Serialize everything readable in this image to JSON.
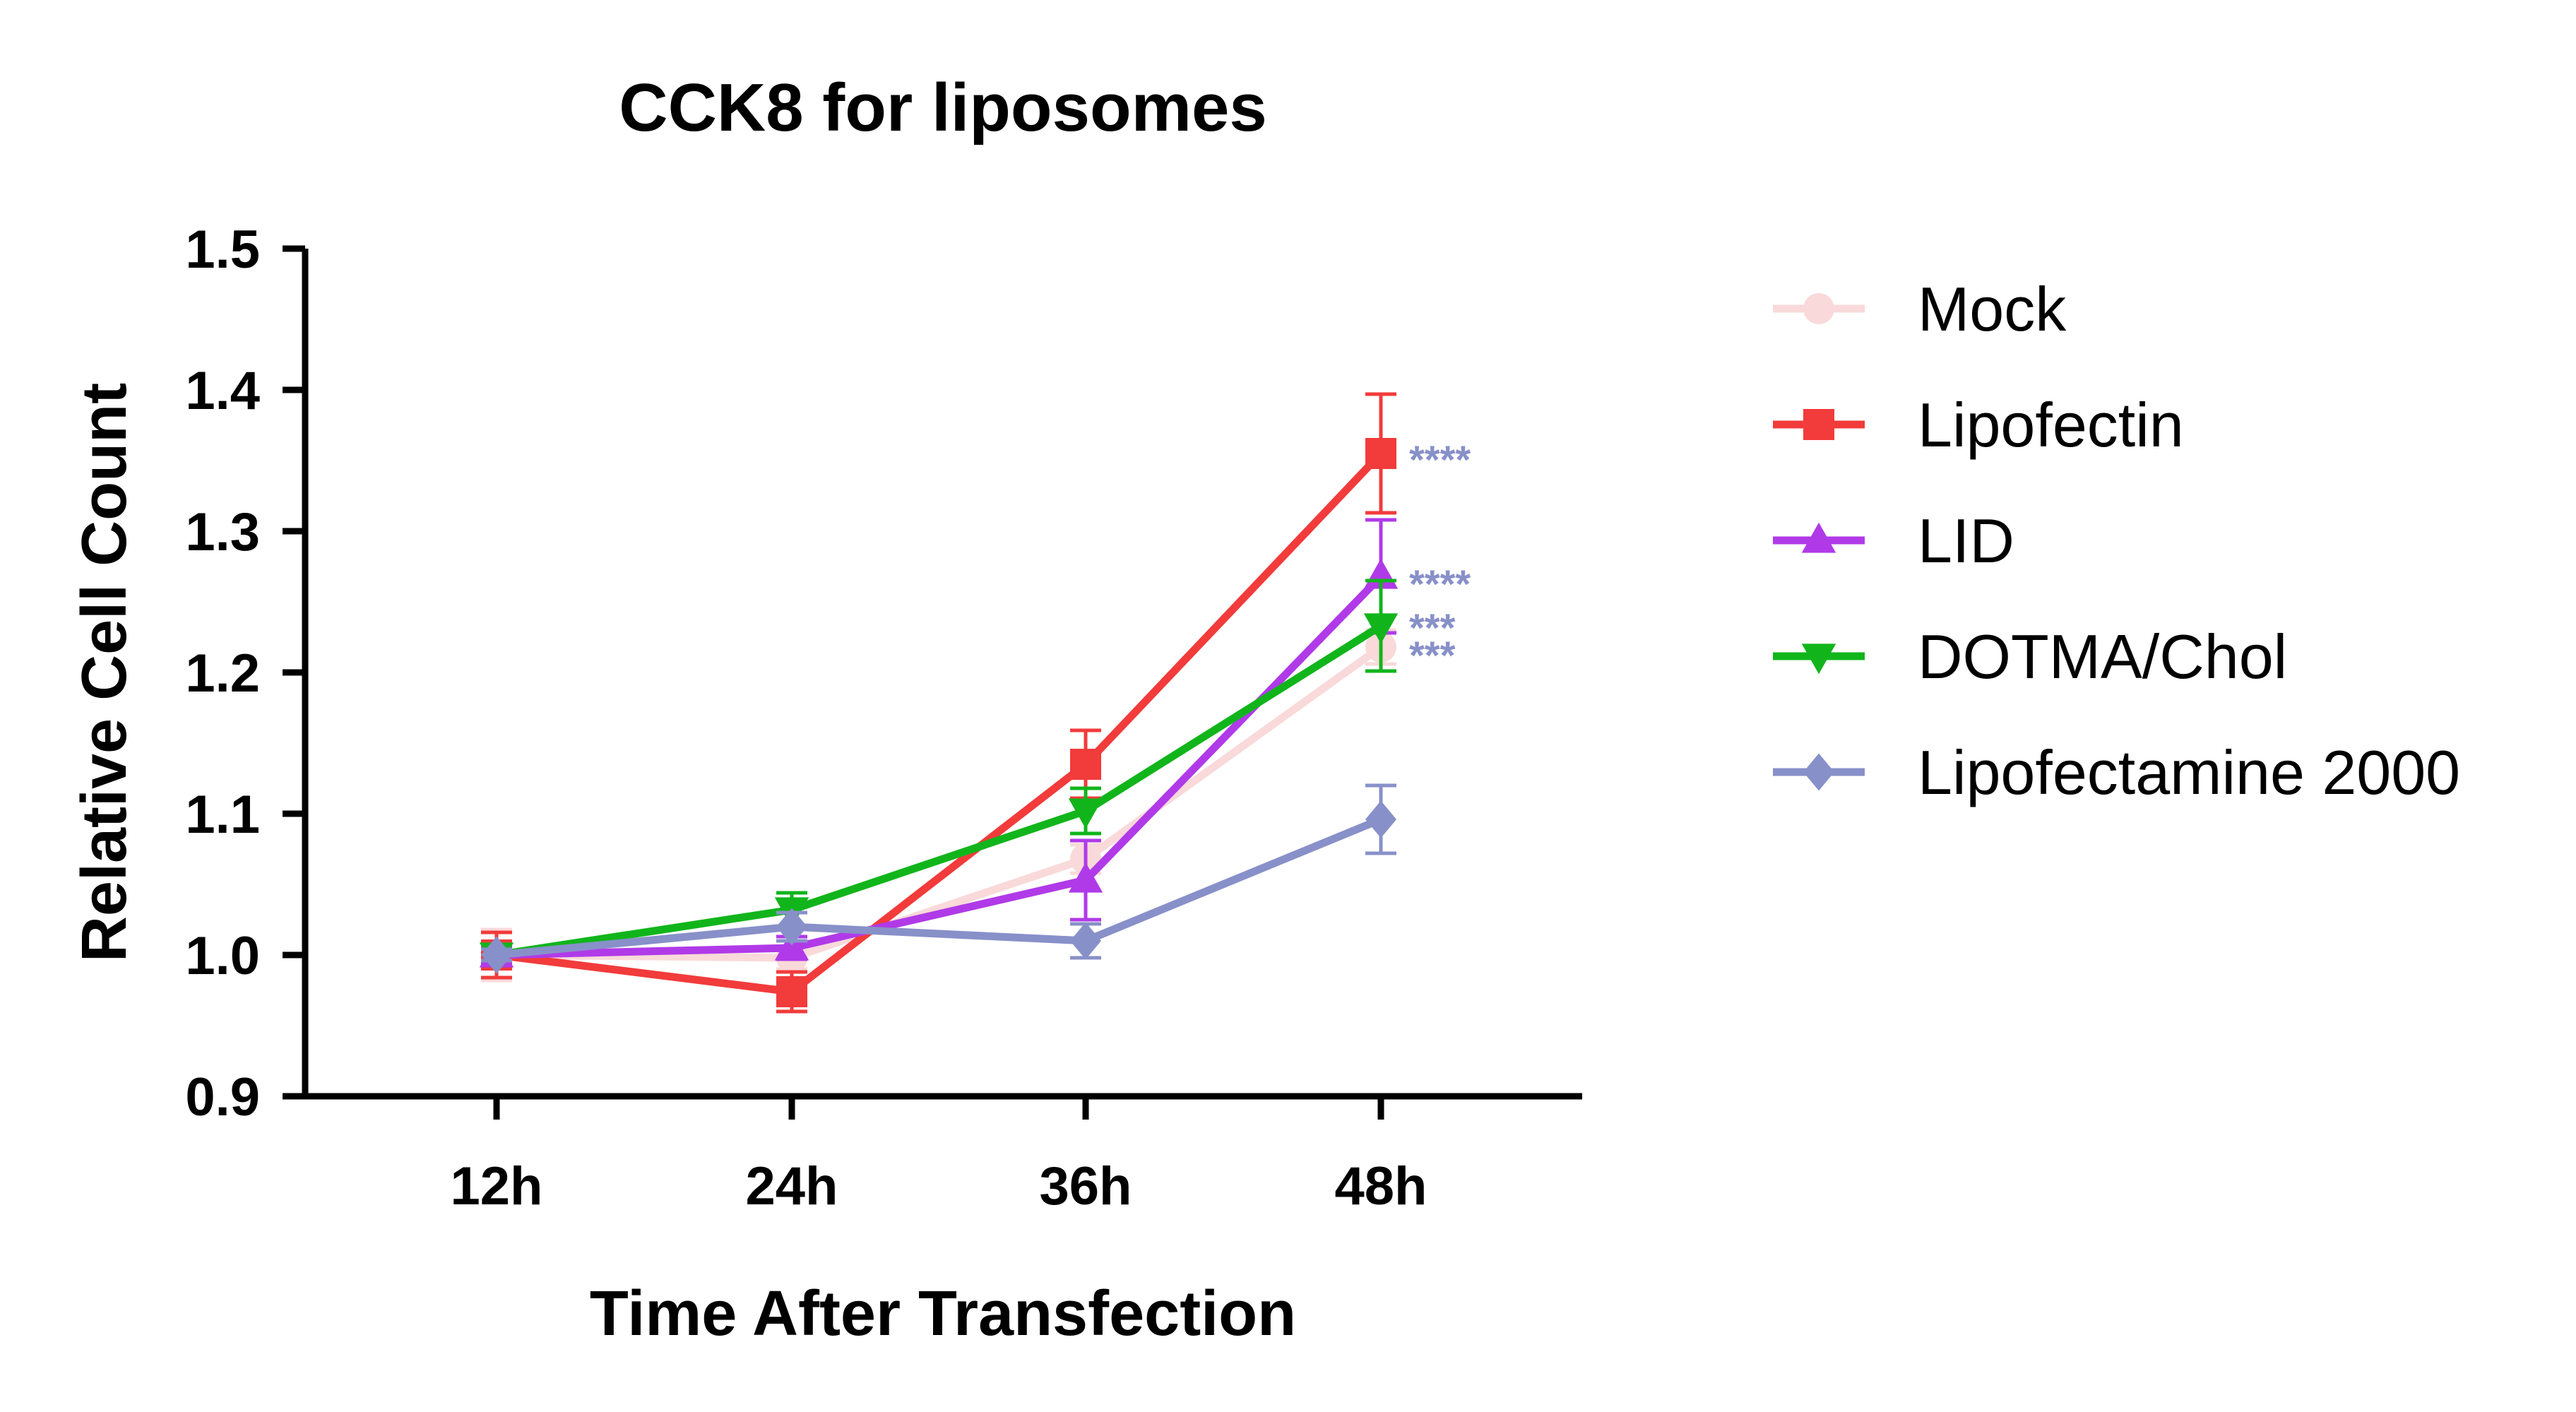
{
  "chart_data": {
    "type": "line",
    "title": "CCK8 for liposomes",
    "xlabel": "Time After Transfection",
    "ylabel": "Relative Cell Count",
    "categories": [
      "12h",
      "24h",
      "36h",
      "48h"
    ],
    "ylim": [
      0.9,
      1.5
    ],
    "yticks": [
      "0.9",
      "1.0",
      "1.1",
      "1.2",
      "1.3",
      "1.4",
      "1.5"
    ],
    "ytick_values": [
      0.9,
      1.0,
      1.1,
      1.2,
      1.3,
      1.4,
      1.5
    ],
    "grid": false,
    "legend_position": "right",
    "series": [
      {
        "name": "Mock",
        "color": "#f9d9d9",
        "marker": "circle",
        "values": [
          1.0,
          0.998,
          1.068,
          1.218
        ],
        "errors": [
          0.018,
          0.008,
          0.01,
          0.012
        ],
        "significance": ""
      },
      {
        "name": "Lipofectin",
        "color": "#f23b3b",
        "marker": "square",
        "values": [
          1.0,
          0.974,
          1.135,
          1.355
        ],
        "errors": [
          0.016,
          0.014,
          0.024,
          0.042
        ],
        "significance": "****"
      },
      {
        "name": "LID",
        "color": "#b03ae8",
        "marker": "triangle-up",
        "values": [
          1.0,
          1.005,
          1.053,
          1.268
        ],
        "errors": [
          0.005,
          0.008,
          0.028,
          0.04
        ],
        "significance": "****"
      },
      {
        "name": "DOTMA/Chol",
        "color": "#11b51b",
        "marker": "triangle-down",
        "values": [
          1.0,
          1.032,
          1.102,
          1.233
        ],
        "errors": [
          0.004,
          0.012,
          0.016,
          0.032
        ],
        "significance": "***"
      },
      {
        "name": "Lipofectamine 2000",
        "color": "#8890c9",
        "marker": "diamond",
        "values": [
          1.0,
          1.02,
          1.01,
          1.096
        ],
        "errors": [
          0.004,
          0.01,
          0.012,
          0.024
        ],
        "significance": "***"
      }
    ],
    "significance_color": "#8890c9"
  }
}
